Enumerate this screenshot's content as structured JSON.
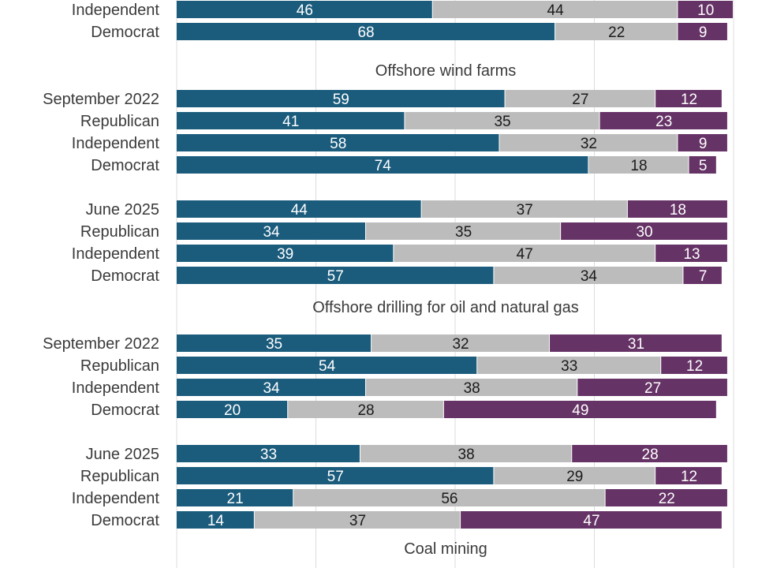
{
  "chart_data": {
    "type": "bar",
    "orientation": "horizontal",
    "stacked": true,
    "xlim": [
      0,
      100
    ],
    "grid": true,
    "colors": [
      "#1b5c7d",
      "#bcbcbc",
      "#663366"
    ],
    "label_colors": [
      "#ffffff",
      "#1a1a1a",
      "#ffffff"
    ],
    "sections": [
      {
        "title": "",
        "rows": [
          {
            "label": "Independent",
            "values": [
              46,
              44,
              10
            ]
          },
          {
            "label": "Democrat",
            "values": [
              68,
              22,
              9
            ]
          }
        ]
      },
      {
        "title": "Offshore wind farms",
        "rows": [
          {
            "label": "September 2022",
            "values": [
              59,
              27,
              12
            ]
          },
          {
            "label": "Republican",
            "values": [
              41,
              35,
              23
            ]
          },
          {
            "label": "Independent",
            "values": [
              58,
              32,
              9
            ]
          },
          {
            "label": "Democrat",
            "values": [
              74,
              18,
              5
            ]
          },
          {
            "label": "June 2025",
            "values": [
              44,
              37,
              18
            ]
          },
          {
            "label": "Republican",
            "values": [
              34,
              35,
              30
            ]
          },
          {
            "label": "Independent",
            "values": [
              39,
              47,
              13
            ]
          },
          {
            "label": "Democrat",
            "values": [
              57,
              34,
              7
            ]
          }
        ]
      },
      {
        "title": "Offshore drilling for oil and natural gas",
        "rows": [
          {
            "label": "September 2022",
            "values": [
              35,
              32,
              31
            ]
          },
          {
            "label": "Republican",
            "values": [
              54,
              33,
              12
            ]
          },
          {
            "label": "Independent",
            "values": [
              34,
              38,
              27
            ]
          },
          {
            "label": "Democrat",
            "values": [
              20,
              28,
              49
            ]
          },
          {
            "label": "June 2025",
            "values": [
              33,
              38,
              28
            ]
          },
          {
            "label": "Republican",
            "values": [
              57,
              29,
              12
            ]
          },
          {
            "label": "Independent",
            "values": [
              21,
              56,
              22
            ]
          },
          {
            "label": "Democrat",
            "values": [
              14,
              37,
              47
            ]
          }
        ]
      },
      {
        "title": "Coal mining",
        "rows": []
      }
    ]
  }
}
